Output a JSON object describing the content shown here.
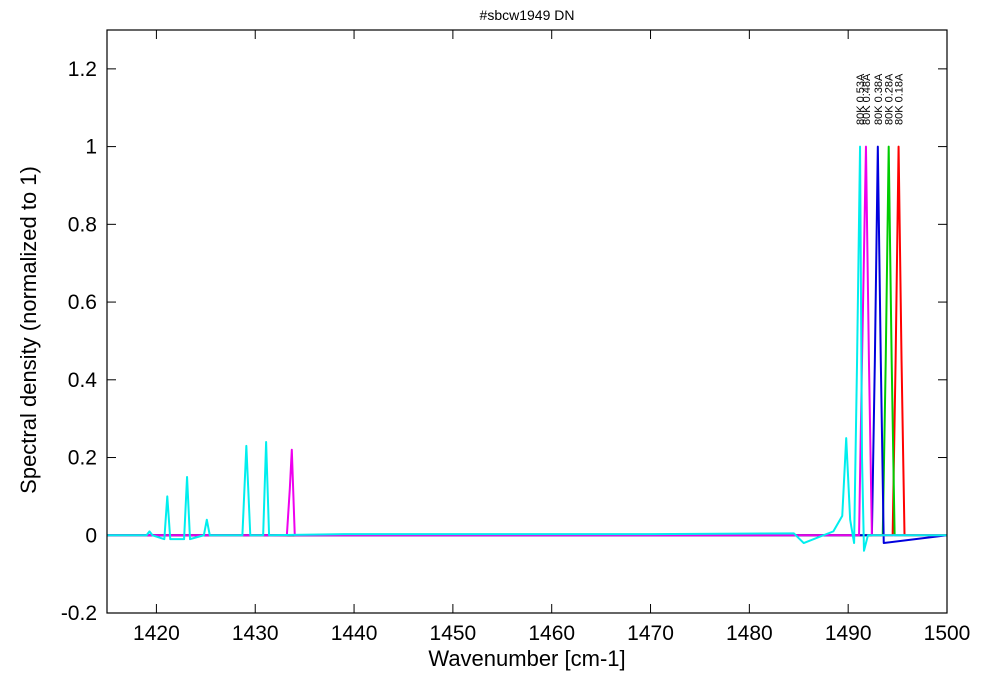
{
  "chart_data": {
    "type": "line",
    "title": "#sbcw1949 DN",
    "x_label": "Wavenumber [cm-1]",
    "y_label": "Spectral density (normalized to 1)",
    "xlim": [
      1415,
      1500
    ],
    "xticks": [
      1420,
      1430,
      1440,
      1450,
      1460,
      1470,
      1480,
      1490,
      1500
    ],
    "ylim": [
      -0.2,
      1.3
    ],
    "yticks": [
      {
        "value": -0.2,
        "label": "-0.2"
      },
      0,
      0.2,
      0.4,
      0.6,
      0.8,
      1,
      1.2
    ],
    "series": [
      {
        "name": "80K 0.18A",
        "color": "#ff0000",
        "x": [
          1415,
          1494.5,
          1494.8,
          1495.1,
          1495.4,
          1495.7,
          1500
        ],
        "values": [
          0,
          0,
          0.45,
          1,
          0.45,
          0,
          0
        ]
      },
      {
        "name": "80K 0.28A",
        "color": "#00cc00",
        "x": [
          1415,
          1493.5,
          1493.8,
          1494.1,
          1494.4,
          1494.7,
          1500
        ],
        "values": [
          0,
          0,
          0.45,
          1,
          0.45,
          0,
          0
        ]
      },
      {
        "name": "80K 0.38A",
        "color": "#0000dd",
        "x": [
          1415,
          1492.4,
          1492.7,
          1493.0,
          1493.3,
          1493.6,
          1500
        ],
        "values": [
          0,
          0,
          0.45,
          1,
          0.45,
          -0.02,
          0
        ]
      },
      {
        "name": "80K 0.48A",
        "color": "#ee00ee",
        "x": [
          1415,
          1433.2,
          1433.5,
          1433.7,
          1434.0,
          1491.1,
          1491.4,
          1491.8,
          1492.1,
          1492.4,
          1500
        ],
        "values": [
          0,
          0,
          0.12,
          0.22,
          0,
          0,
          0.45,
          1,
          0.45,
          0,
          0
        ]
      },
      {
        "name": "80K 0.53A",
        "color": "#00eeee",
        "x": [
          1415,
          1419.0,
          1419.3,
          1419.6,
          1420.8,
          1421.1,
          1421.4,
          1422.8,
          1423.1,
          1423.4,
          1424.8,
          1425.1,
          1425.4,
          1428.7,
          1429.1,
          1429.5,
          1430.8,
          1431.1,
          1431.4,
          1439,
          1470,
          1484.5,
          1485.5,
          1488.5,
          1489.4,
          1489.8,
          1490.2,
          1490.6,
          1490.9,
          1491.2,
          1491.4,
          1491.6,
          1492.0,
          1500
        ],
        "values": [
          0,
          0,
          0.01,
          0,
          -0.01,
          0.1,
          -0.01,
          -0.01,
          0.15,
          -0.01,
          0,
          0.04,
          0,
          0,
          0.23,
          0,
          0,
          0.24,
          0,
          0.003,
          0.003,
          0.005,
          -0.02,
          0.01,
          0.05,
          0.25,
          0.04,
          -0.02,
          0.45,
          1,
          0.2,
          -0.04,
          0,
          0
        ]
      }
    ]
  }
}
